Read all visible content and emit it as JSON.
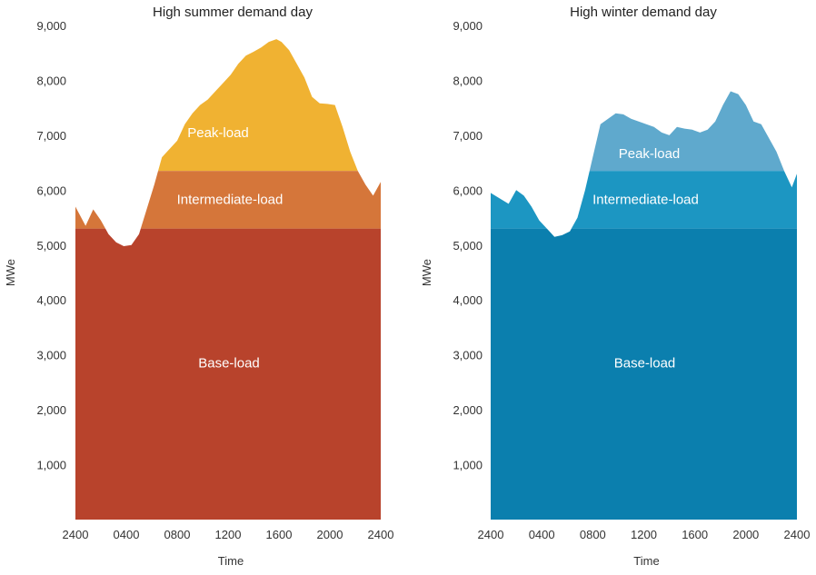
{
  "chart_data": [
    {
      "type": "area",
      "title": "High summer demand day",
      "xlabel": "Time",
      "ylabel": "MWe",
      "xlim": [
        0,
        24
      ],
      "ylim": [
        0,
        9000
      ],
      "x_ticks": [
        "2400",
        "0400",
        "0800",
        "1200",
        "1600",
        "2000",
        "2400"
      ],
      "y_ticks": [
        "1,000",
        "2,000",
        "3,000",
        "4,000",
        "5,000",
        "6,000",
        "7,000",
        "8,000",
        "9,000"
      ],
      "levels": {
        "base": 5300,
        "intermediate": 6350
      },
      "band_labels": {
        "peak": "Peak-load",
        "intermediate": "Intermediate-load",
        "base": "Base-load"
      },
      "colors": {
        "base": "#b8432c",
        "intermediate": "#d5763a",
        "peak": "#f0b232"
      },
      "demand": {
        "x": [
          0,
          0.8,
          1.4,
          2.0,
          2.6,
          3.2,
          3.8,
          4.4,
          5.0,
          5.6,
          6.2,
          6.8,
          7.4,
          8.0,
          8.6,
          9.2,
          9.8,
          10.4,
          11.0,
          11.6,
          12.2,
          12.8,
          13.4,
          14.0,
          14.6,
          15.2,
          15.8,
          16.2,
          16.8,
          17.4,
          18.0,
          18.6,
          19.2,
          19.8,
          20.4,
          21.0,
          21.6,
          22.2,
          22.8,
          23.4,
          24.0
        ],
        "y": [
          5700,
          5350,
          5650,
          5450,
          5200,
          5050,
          4980,
          5000,
          5200,
          5650,
          6100,
          6600,
          6750,
          6900,
          7200,
          7400,
          7550,
          7650,
          7800,
          7950,
          8100,
          8300,
          8450,
          8520,
          8600,
          8700,
          8750,
          8700,
          8550,
          8300,
          8050,
          7700,
          7580,
          7570,
          7550,
          7150,
          6700,
          6350,
          6100,
          5900,
          6150
        ]
      }
    },
    {
      "type": "area",
      "title": "High winter demand day",
      "xlabel": "Time",
      "ylabel": "MWe",
      "xlim": [
        0,
        24
      ],
      "ylim": [
        0,
        9000
      ],
      "x_ticks": [
        "2400",
        "0400",
        "0800",
        "1200",
        "1600",
        "2000",
        "2400"
      ],
      "y_ticks": [
        "1,000",
        "2,000",
        "3,000",
        "4,000",
        "5,000",
        "6,000",
        "7,000",
        "8,000",
        "9,000"
      ],
      "levels": {
        "base": 5300,
        "intermediate": 6350
      },
      "band_labels": {
        "peak": "Peak-load",
        "intermediate": "Intermediate-load",
        "base": "Base-load"
      },
      "colors": {
        "base": "#0b7fae",
        "intermediate": "#1c96c2",
        "peak": "#5fa9cd"
      },
      "demand": {
        "x": [
          0,
          0.7,
          1.4,
          2.0,
          2.6,
          3.2,
          3.8,
          4.4,
          5.0,
          5.6,
          6.2,
          6.8,
          7.4,
          8.0,
          8.6,
          9.2,
          9.8,
          10.4,
          11.0,
          11.6,
          12.2,
          12.8,
          13.4,
          14.0,
          14.6,
          15.2,
          15.8,
          16.4,
          17.0,
          17.6,
          18.2,
          18.8,
          19.4,
          20.0,
          20.6,
          21.2,
          21.8,
          22.4,
          23.0,
          23.6,
          24.0
        ],
        "y": [
          5950,
          5850,
          5750,
          6000,
          5900,
          5700,
          5450,
          5300,
          5150,
          5180,
          5250,
          5500,
          6000,
          6600,
          7200,
          7300,
          7400,
          7380,
          7300,
          7250,
          7200,
          7150,
          7050,
          7000,
          7150,
          7120,
          7100,
          7050,
          7100,
          7250,
          7550,
          7800,
          7750,
          7550,
          7250,
          7200,
          6950,
          6700,
          6350,
          6050,
          6300
        ]
      }
    }
  ]
}
